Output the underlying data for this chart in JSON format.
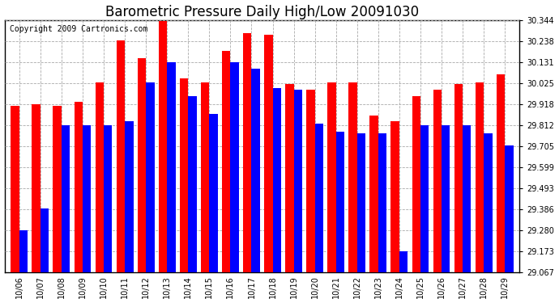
{
  "title": "Barometric Pressure Daily High/Low 20091030",
  "copyright_text": "Copyright 2009 Cartronics.com",
  "categories": [
    "10/06",
    "10/07",
    "10/08",
    "10/09",
    "10/10",
    "10/11",
    "10/12",
    "10/13",
    "10/14",
    "10/15",
    "10/16",
    "10/17",
    "10/18",
    "10/19",
    "10/20",
    "10/21",
    "10/22",
    "10/23",
    "10/24",
    "10/25",
    "10/26",
    "10/27",
    "10/28",
    "10/29"
  ],
  "highs": [
    29.91,
    29.92,
    29.91,
    29.93,
    30.03,
    30.24,
    30.15,
    30.34,
    30.05,
    30.03,
    30.19,
    30.28,
    30.27,
    30.02,
    29.99,
    30.03,
    30.03,
    29.86,
    29.83,
    29.96,
    29.99,
    30.02,
    30.03,
    30.07
  ],
  "lows": [
    29.28,
    29.39,
    29.81,
    29.81,
    29.81,
    29.83,
    30.03,
    30.13,
    29.96,
    29.87,
    30.13,
    30.1,
    30.0,
    29.99,
    29.82,
    29.78,
    29.77,
    29.77,
    29.17,
    29.81,
    29.81,
    29.81,
    29.77,
    29.71
  ],
  "high_color": "#ff0000",
  "low_color": "#0000ff",
  "bg_color": "#ffffff",
  "grid_color": "#aaaaaa",
  "ymin": 29.067,
  "ymax": 30.344,
  "yticks": [
    29.067,
    29.173,
    29.28,
    29.386,
    29.493,
    29.599,
    29.705,
    29.812,
    29.918,
    30.025,
    30.131,
    30.238,
    30.344
  ],
  "title_fontsize": 12,
  "copyright_fontsize": 7,
  "tick_fontsize": 7,
  "bar_width": 0.4,
  "figwidth": 6.9,
  "figheight": 3.75,
  "dpi": 100
}
